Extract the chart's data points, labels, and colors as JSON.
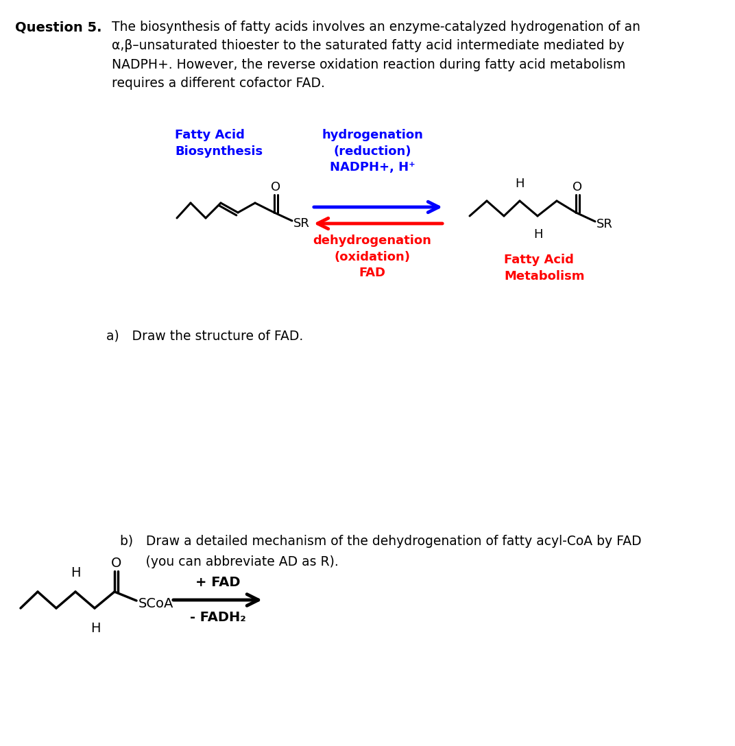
{
  "title_bold": "Question 5.",
  "title_text": "The biosynthesis of fatty acids involves an enzyme-catalyzed hydrogenation of an\nα,β–unsaturated thioester to the saturated fatty acid intermediate mediated by\nNADPH+. However, the reverse oxidation reaction during fatty acid metabolism\nrequires a different cofactor FAD.",
  "fatty_acid_biosynthesis_label": "Fatty Acid\nBiosynthesis",
  "fatty_acid_metabolism_label": "Fatty Acid\nMetabolism",
  "hydrogenation_label": "hydrogenation\n(reduction)\nNADPH+, H⁺",
  "dehydrogenation_label": "dehydrogenation\n(oxidation)\nFAD",
  "blue_color": "#0000FF",
  "red_color": "#FF0000",
  "black_color": "#000000",
  "part_a_text": "a) Draw the structure of FAD.",
  "part_b_text_1": "b) Draw a detailed mechanism of the dehydrogenation of fatty acyl-CoA by FAD",
  "part_b_text_2": "  (you can abbreviate AD as R).",
  "fad_label": "+ FAD",
  "fadh2_label": "- FADH₂",
  "background_color": "#ffffff"
}
